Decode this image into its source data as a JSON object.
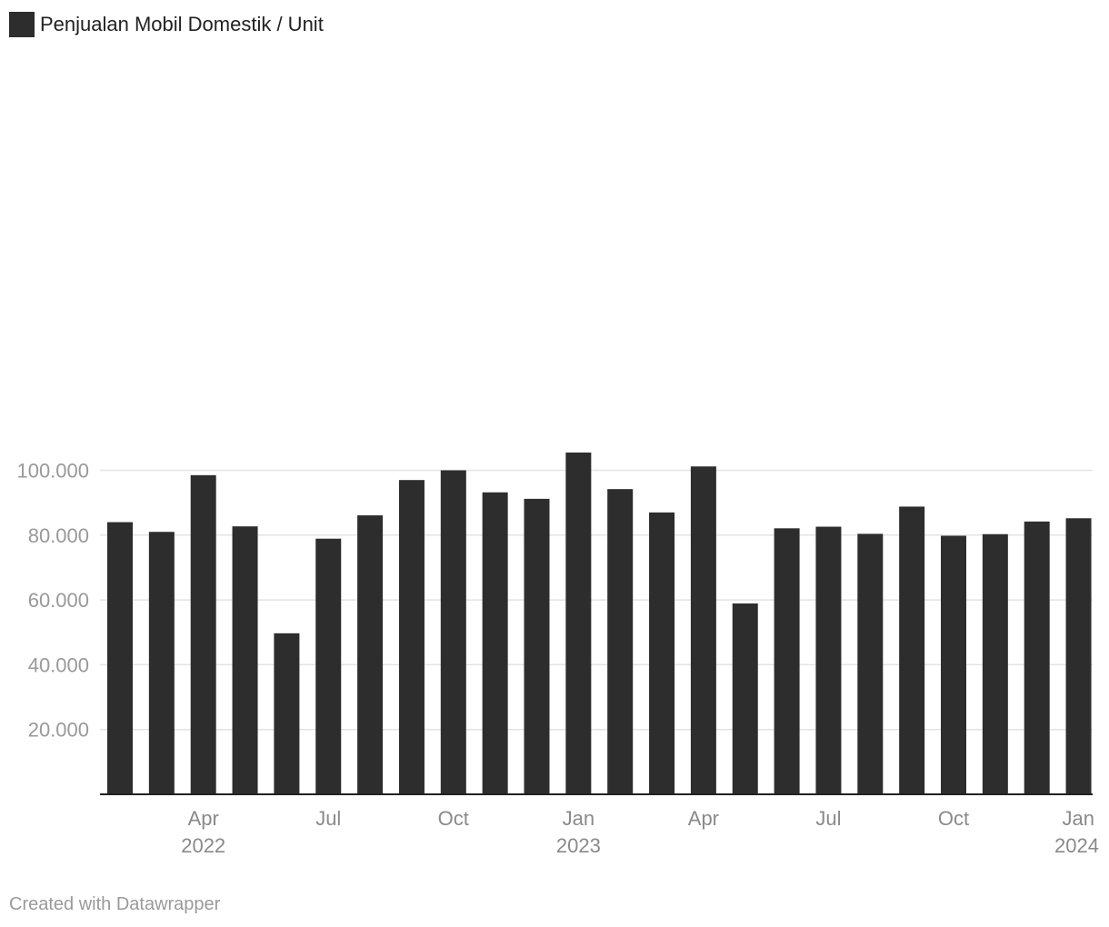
{
  "legend": {
    "label": "Penjualan Mobil Domestik / Unit",
    "color": "#2d2d2d"
  },
  "credit": "Created with Datawrapper",
  "chart_data": {
    "type": "bar",
    "series": [
      {
        "name": "Penjualan Mobil Domestik / Unit",
        "color": "#2d2d2d",
        "categories": [
          "2022-02",
          "2022-03",
          "2022-04",
          "2022-05",
          "2022-06",
          "2022-07",
          "2022-08",
          "2022-09",
          "2022-10",
          "2022-11",
          "2022-12",
          "2023-01",
          "2023-02",
          "2023-03",
          "2023-04",
          "2023-05",
          "2023-06",
          "2023-07",
          "2023-08",
          "2023-09",
          "2023-10",
          "2023-11",
          "2023-12",
          "2024-01"
        ],
        "values": [
          84000,
          81000,
          98500,
          82700,
          49700,
          78900,
          86100,
          97000,
          100000,
          93200,
          91200,
          105500,
          94200,
          87000,
          101200,
          58900,
          82100,
          82600,
          80400,
          88800,
          79800,
          80300,
          84200,
          85200
        ]
      }
    ],
    "ylim": [
      0,
      110000
    ],
    "y_ticks": [
      20000,
      40000,
      60000,
      80000,
      100000
    ],
    "y_tick_labels": [
      "20.000",
      "40.000",
      "60.000",
      "80.000",
      "100.000"
    ],
    "x_ticks": [
      {
        "category": "2022-04",
        "label": "Apr",
        "year": "2022"
      },
      {
        "category": "2022-07",
        "label": "Jul",
        "year": ""
      },
      {
        "category": "2022-10",
        "label": "Oct",
        "year": ""
      },
      {
        "category": "2023-01",
        "label": "Jan",
        "year": "2023"
      },
      {
        "category": "2023-04",
        "label": "Apr",
        "year": ""
      },
      {
        "category": "2023-07",
        "label": "Jul",
        "year": ""
      },
      {
        "category": "2023-10",
        "label": "Oct",
        "year": ""
      },
      {
        "category": "2024-01",
        "label": "Jan",
        "year": "2024"
      }
    ],
    "grid": true,
    "legend_position": "top-left",
    "colors": {
      "bar": "#2d2d2d",
      "grid": "#e3e3e3",
      "axis": "#222222",
      "tick_text": "#999999"
    }
  }
}
